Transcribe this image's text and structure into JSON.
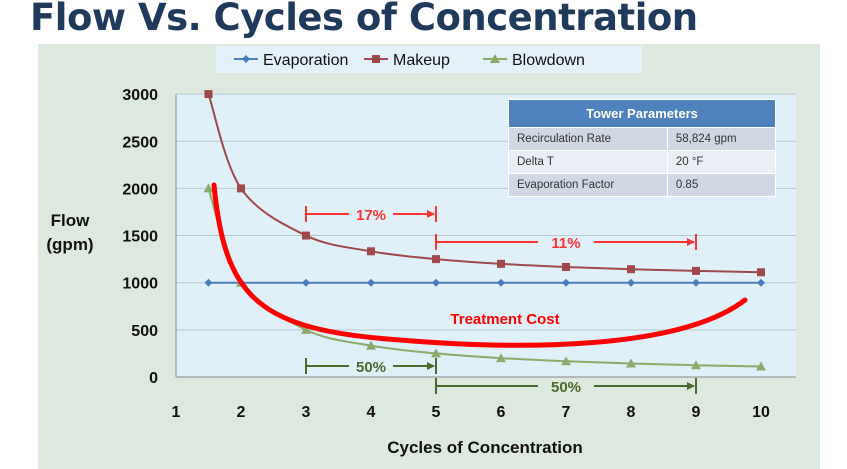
{
  "title": "Flow Vs. Cycles of Concentration",
  "chart_data": {
    "type": "line",
    "xlabel": "Cycles of Concentration",
    "ylabel": "Flow (gpm)",
    "ylabel_lines": [
      "Flow",
      "(gpm)"
    ],
    "xlim": [
      1,
      10
    ],
    "ylim": [
      0,
      3000
    ],
    "xticks": [
      1,
      2,
      3,
      4,
      5,
      6,
      7,
      8,
      9,
      10
    ],
    "yticks": [
      0,
      500,
      1000,
      1500,
      2000,
      2500,
      3000
    ],
    "legend_position": "top",
    "x": [
      1.5,
      2,
      3,
      4,
      5,
      6,
      7,
      8,
      9,
      10
    ],
    "series": [
      {
        "name": "Evaporation",
        "color": "#4a7ebb",
        "marker": "diamond",
        "values": [
          1000,
          1000,
          1000,
          1000,
          1000,
          1000,
          1000,
          1000,
          1000,
          1000
        ]
      },
      {
        "name": "Makeup",
        "color": "#a0484a",
        "marker": "square",
        "values": [
          3000,
          2000,
          1500,
          1333,
          1250,
          1200,
          1167,
          1143,
          1125,
          1111
        ]
      },
      {
        "name": "Blowdown",
        "color": "#8aab6a",
        "marker": "triangle",
        "values": [
          2000,
          1000,
          500,
          333,
          250,
          200,
          167,
          143,
          125,
          111
        ]
      }
    ],
    "annotations": [
      {
        "text": "17%",
        "color": "#ff3333",
        "x1": 3,
        "x2": 5,
        "y": 1750
      },
      {
        "text": "11%",
        "color": "#ff3333",
        "x1": 5,
        "x2": 9,
        "y": 1450
      },
      {
        "text": "50%",
        "color": "#4a6a2a",
        "x1": 3,
        "x2": 5,
        "y": 120
      },
      {
        "text": "50%",
        "color": "#4a6a2a",
        "x1": 5,
        "x2": 9,
        "y": -100
      },
      {
        "text": "Treatment Cost",
        "color": "#ff0000"
      }
    ],
    "table": {
      "title": "Tower Parameters",
      "rows": [
        [
          "Recirculation Rate",
          "58,824 gpm"
        ],
        [
          "Delta T",
          "20 °F"
        ],
        [
          "Evaporation Factor",
          "0.85"
        ]
      ]
    }
  }
}
